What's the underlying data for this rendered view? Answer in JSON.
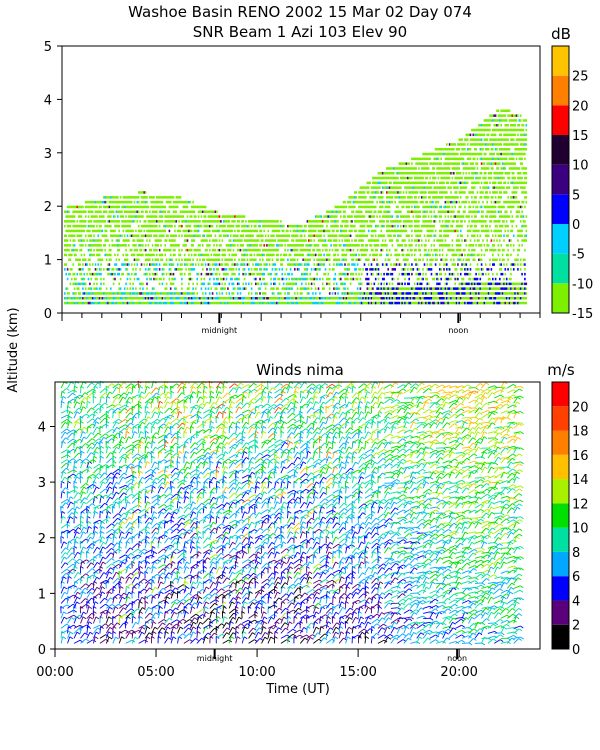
{
  "title_line1": "Washoe Basin RENO 2002  15 Mar 02 Day 074",
  "title_line2": "SNR Beam 1 Azi 103 Elev 90",
  "shared_ylabel": "Altitude (km)",
  "chart_data": [
    {
      "type": "heatmap",
      "name_hint": "snr",
      "unit_label": "dB",
      "x_range_hours": [
        0,
        24
      ],
      "ylim": [
        0,
        5
      ],
      "yticks": [
        "0",
        "1",
        "2",
        "3",
        "4",
        "5"
      ],
      "colorbar_range": [
        -15,
        30
      ],
      "colorbar_ticks": [
        "-15",
        "-10",
        "-5",
        "0",
        "5",
        "10",
        "15",
        "20",
        "25"
      ],
      "colors": [
        "#7cf000",
        "#00d0ff",
        "#0000ff",
        "#5a007a",
        "#ff0000",
        "#ff8000",
        "#ffc400"
      ],
      "markers": [
        {
          "label": "midnight",
          "hour": 7.9
        },
        {
          "label": "noon",
          "hour": 19.9
        }
      ],
      "top_envelope_km": [
        {
          "hour": 0,
          "top": 1.9
        },
        {
          "hour": 2,
          "top": 2.1
        },
        {
          "hour": 4,
          "top": 2.2
        },
        {
          "hour": 6,
          "top": 2.1
        },
        {
          "hour": 8,
          "top": 1.8
        },
        {
          "hour": 10,
          "top": 1.7
        },
        {
          "hour": 12,
          "top": 1.6
        },
        {
          "hour": 14,
          "top": 2.0
        },
        {
          "hour": 16,
          "top": 2.6
        },
        {
          "hour": 18,
          "top": 2.9
        },
        {
          "hour": 20,
          "top": 3.2
        },
        {
          "hour": 22,
          "top": 3.8
        },
        {
          "hour": 23.2,
          "top": 3.6
        }
      ]
    },
    {
      "type": "wind_barbs",
      "title": "Winds nima",
      "unit_label": "m/s",
      "xlabel": "Time (UT)",
      "x_range_hours": [
        0,
        24
      ],
      "xticks": [
        {
          "label": "00:00",
          "hour": 0
        },
        {
          "label": "05:00",
          "hour": 5
        },
        {
          "label": "10:00",
          "hour": 10
        },
        {
          "label": "15:00",
          "hour": 15
        },
        {
          "label": "20:00",
          "hour": 20
        }
      ],
      "ylim": [
        0,
        4.8
      ],
      "yticks": [
        "0",
        "1",
        "2",
        "3",
        "4"
      ],
      "colorbar_range": [
        0,
        22
      ],
      "colorbar_ticks": [
        "0",
        "2",
        "4",
        "6",
        "8",
        "10",
        "12",
        "14",
        "16",
        "18",
        "20"
      ],
      "colors": [
        "#000000",
        "#5a007a",
        "#0000ff",
        "#00a8ff",
        "#00e0a0",
        "#00e000",
        "#a8f000",
        "#ffc000",
        "#ff8000",
        "#ff4000",
        "#ff0000"
      ],
      "markers": [
        {
          "label": "midnight",
          "hour": 7.9
        },
        {
          "label": "noon",
          "hour": 19.9
        }
      ],
      "speed_profile": {
        "hours": [
          0,
          4,
          8,
          12,
          16,
          19,
          21,
          23
        ],
        "low_speed": [
          5,
          3,
          2,
          3,
          4,
          7,
          8,
          8
        ],
        "high_speed": [
          10,
          11,
          12,
          10,
          12,
          13,
          14,
          13
        ]
      }
    }
  ]
}
